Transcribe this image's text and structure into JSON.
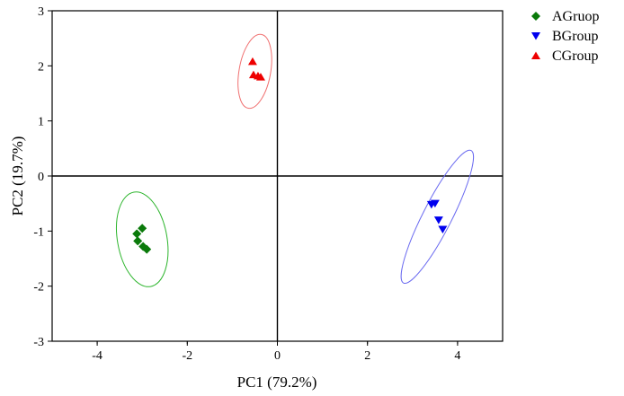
{
  "chart_data": {
    "type": "scatter",
    "title": "",
    "xlabel": "PC1 (79.2%)",
    "ylabel": "PC2 (19.7%)",
    "xlim": [
      -5,
      5
    ],
    "ylim": [
      -3,
      3
    ],
    "xticks": [
      -4,
      -2,
      0,
      2,
      4
    ],
    "yticks": [
      -3,
      -2,
      -1,
      0,
      1,
      2,
      3
    ],
    "grid": false,
    "reference_lines": {
      "x": 0,
      "y": 0
    },
    "legend": "outside-top-right",
    "series": [
      {
        "name": "AGruop",
        "color": "#0a7a0a",
        "marker": "diamond",
        "points": [
          [
            -3.0,
            -0.95
          ],
          [
            -3.12,
            -1.05
          ],
          [
            -3.1,
            -1.18
          ],
          [
            -2.98,
            -1.28
          ],
          [
            -2.9,
            -1.33
          ]
        ],
        "ellipse": {
          "center": [
            -3.0,
            -1.15
          ],
          "semi_axes": [
            0.55,
            0.87
          ],
          "rotation_deg": -10,
          "color": "#2db52d"
        }
      },
      {
        "name": "BGroup",
        "color": "#0000ee",
        "marker": "triangle-down",
        "points": [
          [
            3.42,
            -0.52
          ],
          [
            3.5,
            -0.5
          ],
          [
            3.58,
            -0.8
          ],
          [
            3.67,
            -0.97
          ]
        ],
        "ellipse": {
          "center": [
            3.55,
            -0.74
          ],
          "semi_axes": [
            0.32,
            1.35
          ],
          "rotation_deg": 27,
          "color": "#6a6af0"
        }
      },
      {
        "name": "CGroup",
        "color": "#ee0000",
        "marker": "triangle-up",
        "points": [
          [
            -0.55,
            2.08
          ],
          [
            -0.53,
            1.84
          ],
          [
            -0.43,
            1.82
          ],
          [
            -0.37,
            1.8
          ]
        ],
        "ellipse": {
          "center": [
            -0.5,
            1.9
          ],
          "semi_axes": [
            0.35,
            0.68
          ],
          "rotation_deg": 10,
          "color": "#f07070"
        }
      }
    ]
  }
}
